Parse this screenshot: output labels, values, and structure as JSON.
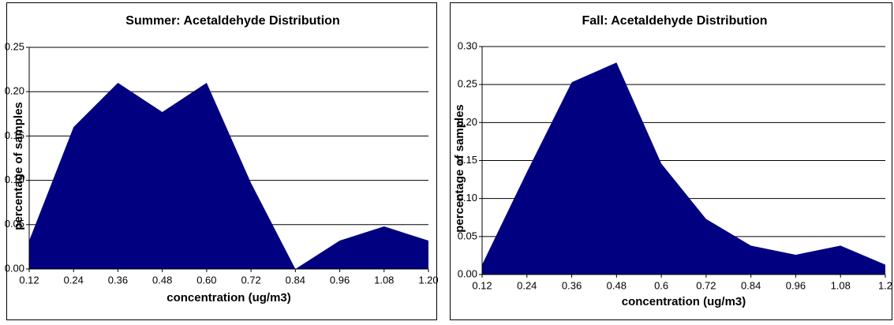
{
  "chart_data": [
    {
      "type": "area",
      "title": "Summer:  Acetaldehyde Distribution",
      "xlabel": "concentration (ug/m3)",
      "ylabel": "percentage of samples",
      "categories": [
        "0.12",
        "0.24",
        "0.36",
        "0.48",
        "0.60",
        "0.72",
        "0.84",
        "0.96",
        "1.08",
        "1.20"
      ],
      "values": [
        0.032,
        0.16,
        0.21,
        0.177,
        0.21,
        0.097,
        0.0,
        0.032,
        0.048,
        0.032
      ],
      "color": "#000080",
      "ylim": [
        0,
        0.25
      ],
      "yticks": [
        {
          "value": 0,
          "label": "0.00"
        },
        0.05,
        {
          "value": 0.1,
          "label": "0.10"
        },
        0.15,
        {
          "value": 0.2,
          "label": "0.20"
        },
        0.25
      ],
      "grid": true
    },
    {
      "type": "area",
      "title": "Fall:  Acetaldehyde Distribution",
      "xlabel": "concentration (ug/m3)",
      "ylabel": "percentage of samples",
      "categories": [
        "0.12",
        "0.24",
        "0.36",
        "0.48",
        "0.6",
        "0.72",
        "0.84",
        "0.96",
        "1.08",
        "1.2"
      ],
      "values": [
        0.013,
        0.135,
        0.253,
        0.279,
        0.146,
        0.073,
        0.038,
        0.026,
        0.038,
        0.013
      ],
      "color": "#000080",
      "ylim": [
        0,
        0.3
      ],
      "yticks": [
        {
          "value": 0,
          "label": "0.00"
        },
        0.05,
        {
          "value": 0.1,
          "label": "0.10"
        },
        0.15,
        {
          "value": 0.2,
          "label": "0.20"
        },
        0.25,
        {
          "value": 0.3,
          "label": "0.30"
        }
      ],
      "grid": true
    }
  ]
}
